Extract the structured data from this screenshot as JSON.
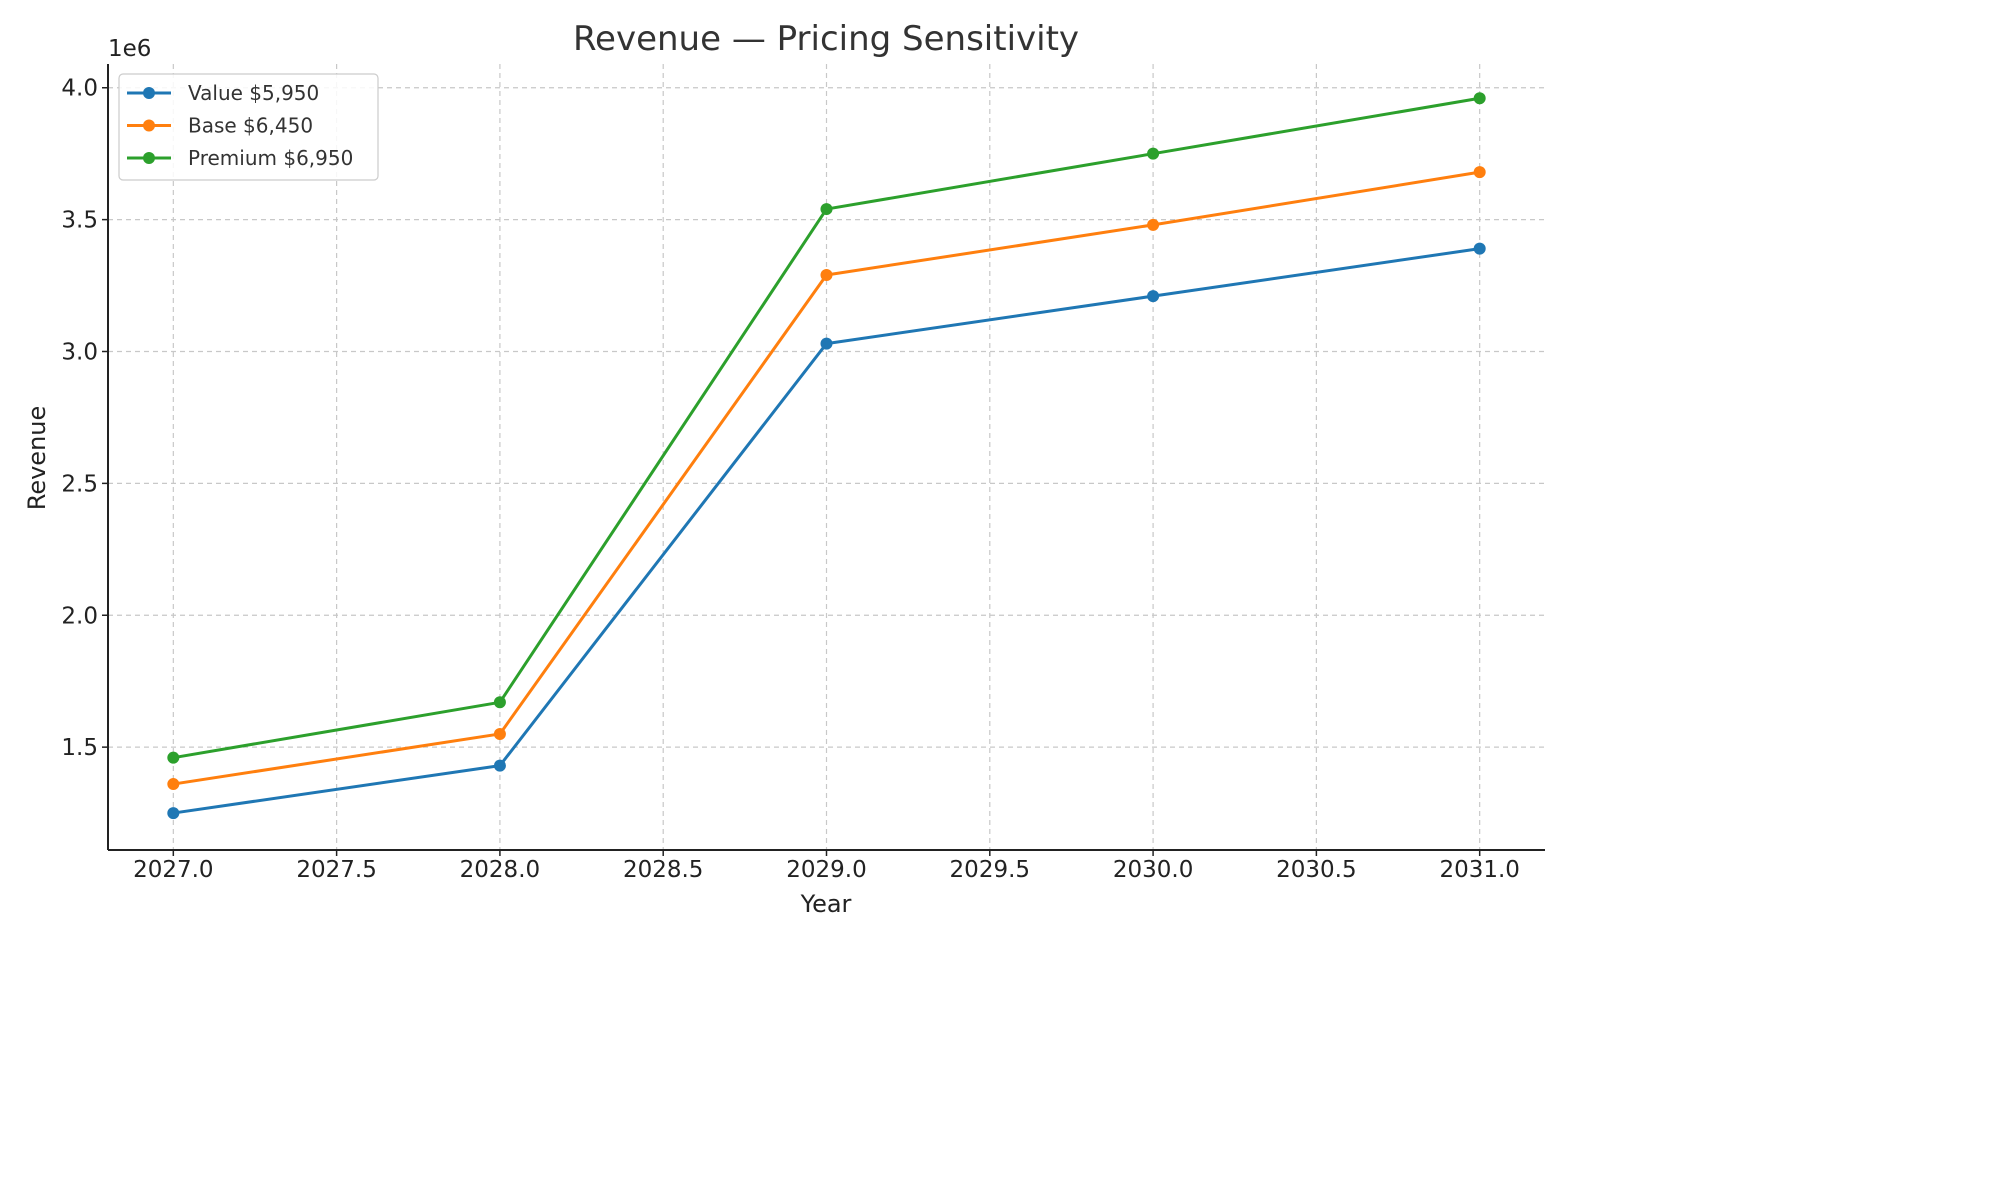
{
  "chart_data": {
    "type": "line",
    "title": "Revenue — Pricing Sensitivity",
    "xlabel": "Year",
    "ylabel": "Revenue",
    "y_offset_label": "1e6",
    "x": [
      2027,
      2028,
      2029,
      2030,
      2031
    ],
    "xlim": [
      2026.8,
      2031.2
    ],
    "ylim": [
      1.11,
      4.09
    ],
    "x_ticks": [
      2027.0,
      2027.5,
      2028.0,
      2028.5,
      2029.0,
      2029.5,
      2030.0,
      2030.5,
      2031.0
    ],
    "x_tick_labels": [
      "2027.0",
      "2027.5",
      "2028.0",
      "2028.5",
      "2029.0",
      "2029.5",
      "2030.0",
      "2030.5",
      "2031.0"
    ],
    "y_ticks": [
      1.5,
      2.0,
      2.5,
      3.0,
      3.5,
      4.0
    ],
    "y_tick_labels": [
      "1.5",
      "2.0",
      "2.5",
      "3.0",
      "3.5",
      "4.0"
    ],
    "grid": true,
    "legend_position": "top-left",
    "series": [
      {
        "name": "Value $5,950",
        "color": "#1f77b4",
        "values": [
          1.25,
          1.43,
          3.03,
          3.21,
          3.39
        ]
      },
      {
        "name": "Base $6,450",
        "color": "#ff7f0e",
        "values": [
          1.36,
          1.55,
          3.29,
          3.48,
          3.68
        ]
      },
      {
        "name": "Premium $6,950",
        "color": "#2ca02c",
        "values": [
          1.46,
          1.67,
          3.54,
          3.75,
          3.96
        ]
      }
    ]
  }
}
